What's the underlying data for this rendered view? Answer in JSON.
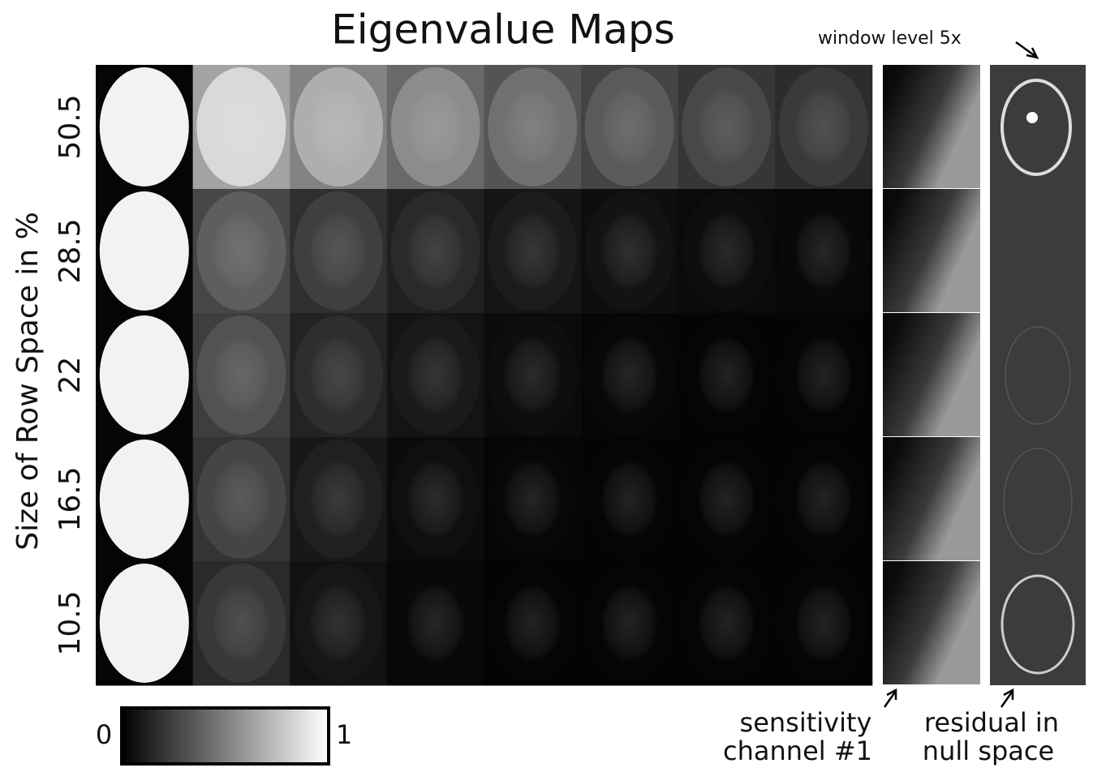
{
  "title": "Eigenvalue Maps",
  "y_axis_label": "Size of Row Space in %",
  "rows": [
    "50.5",
    "28.5",
    "22",
    "16.5",
    "10.5"
  ],
  "colorbar": {
    "min_label": "0",
    "max_label": "1"
  },
  "annotations": {
    "window_level": "window level 5x",
    "sensitivity": [
      "sensitivity",
      "channel #1"
    ],
    "residual": [
      "residual in",
      "null space"
    ]
  }
}
